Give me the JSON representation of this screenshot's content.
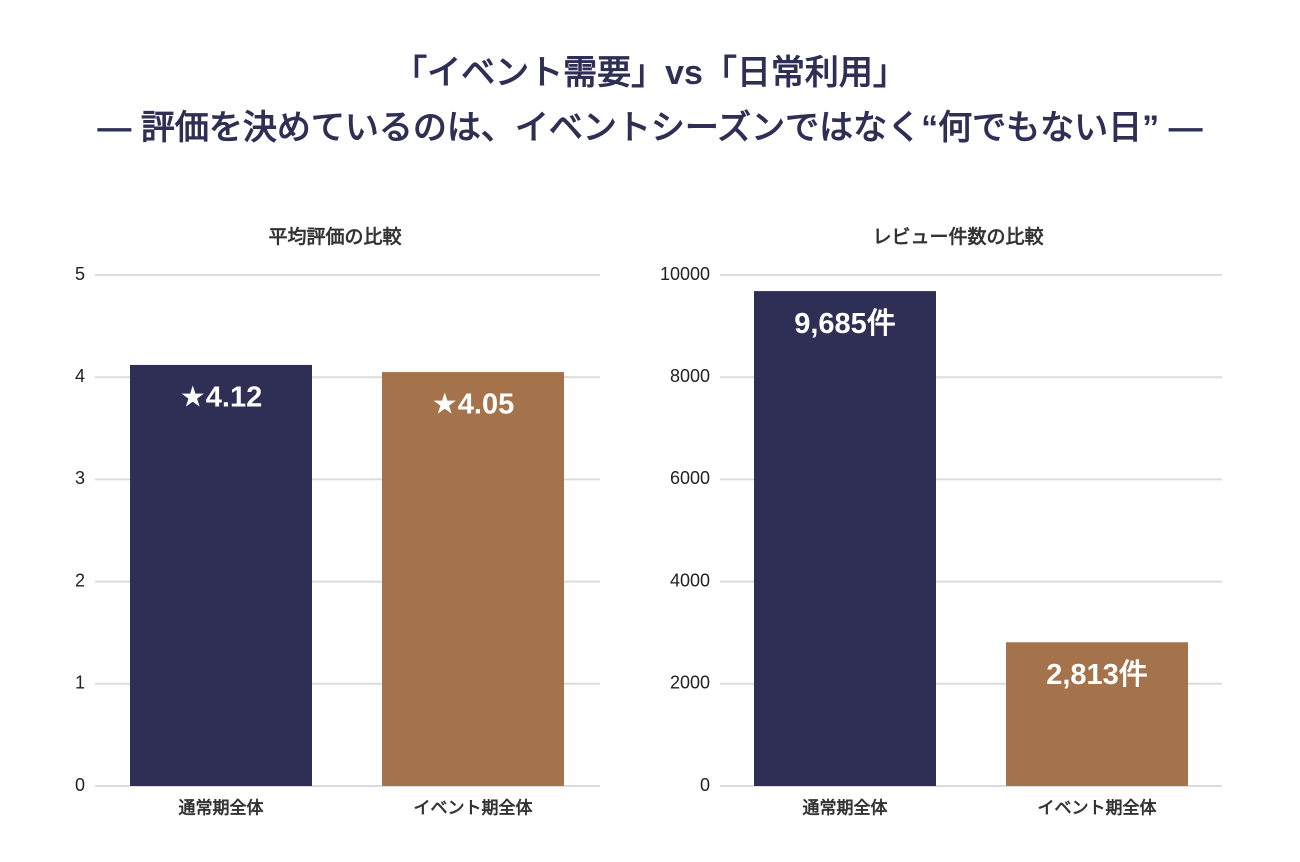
{
  "header": {
    "title": "「イベント需要」vs「日常利用」",
    "subtitle": "— 評価を決めているのは、イベントシーズンではなく“何でもない日” —"
  },
  "chart_data": [
    {
      "type": "bar",
      "title": "平均評価の比較",
      "categories": [
        "通常期全体",
        "イベント期全体"
      ],
      "values": [
        4.12,
        4.05
      ],
      "value_labels": [
        "★4.12",
        "★4.05"
      ],
      "colors": [
        "#2f2f55",
        "#a5734b"
      ],
      "ylim": [
        0,
        5
      ],
      "yticks": [
        0,
        1,
        2,
        3,
        4,
        5
      ],
      "grid": true
    },
    {
      "type": "bar",
      "title": "レビュー件数の比較",
      "categories": [
        "通常期全体",
        "イベント期全体"
      ],
      "values": [
        9685,
        2813
      ],
      "value_labels": [
        "9,685件",
        "2,813件"
      ],
      "colors": [
        "#2f2f55",
        "#a5734b"
      ],
      "ylim": [
        0,
        10000
      ],
      "yticks": [
        0,
        2000,
        4000,
        6000,
        8000,
        10000
      ],
      "grid": true
    }
  ]
}
